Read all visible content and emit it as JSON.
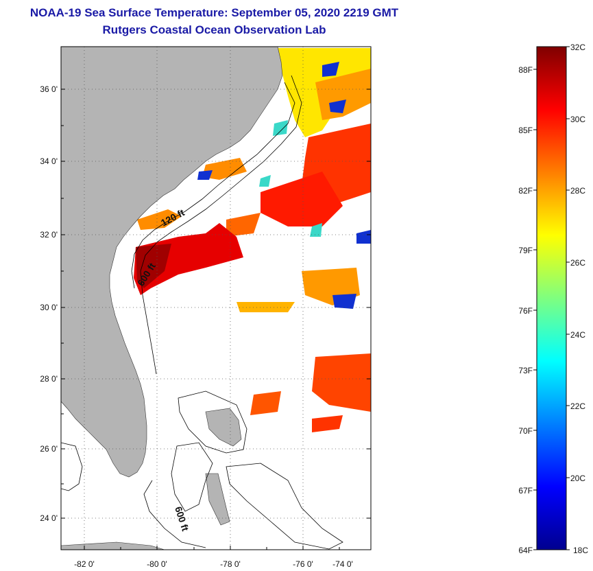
{
  "header": {
    "title": "NOAA-19 Sea Surface Temperature:  September 05, 2020 2219 GMT",
    "subtitle": "Rutgers Coastal Ocean Observation Lab"
  },
  "map": {
    "longitude_labels": [
      "-82 0'",
      "-80 0'",
      "-78 0'",
      "-76 0'",
      "-74 0'"
    ],
    "latitude_labels": [
      "36 0'",
      "34 0'",
      "32 0'",
      "30 0'",
      "28 0'",
      "26 0'",
      "24 0'"
    ],
    "contour_labels": [
      "120 ft",
      "600 ft",
      "600 ft"
    ],
    "colors": {
      "land": "#b4b4b4",
      "water_nodata": "#ffffff",
      "frame": "#000000"
    }
  },
  "colorbar": {
    "celsius_labels": [
      "32C",
      "30C",
      "28C",
      "26C",
      "24C",
      "22C",
      "20C",
      "18C"
    ],
    "fahrenheit_labels": [
      "88F",
      "85F",
      "82F",
      "79F",
      "76F",
      "73F",
      "70F",
      "67F",
      "64F"
    ],
    "range_celsius": [
      18,
      32
    ],
    "colors": [
      "#00008f",
      "#0000ff",
      "#007fff",
      "#00ffff",
      "#7fff7f",
      "#ffff00",
      "#ff7f00",
      "#ff0000",
      "#7f0000"
    ]
  }
}
